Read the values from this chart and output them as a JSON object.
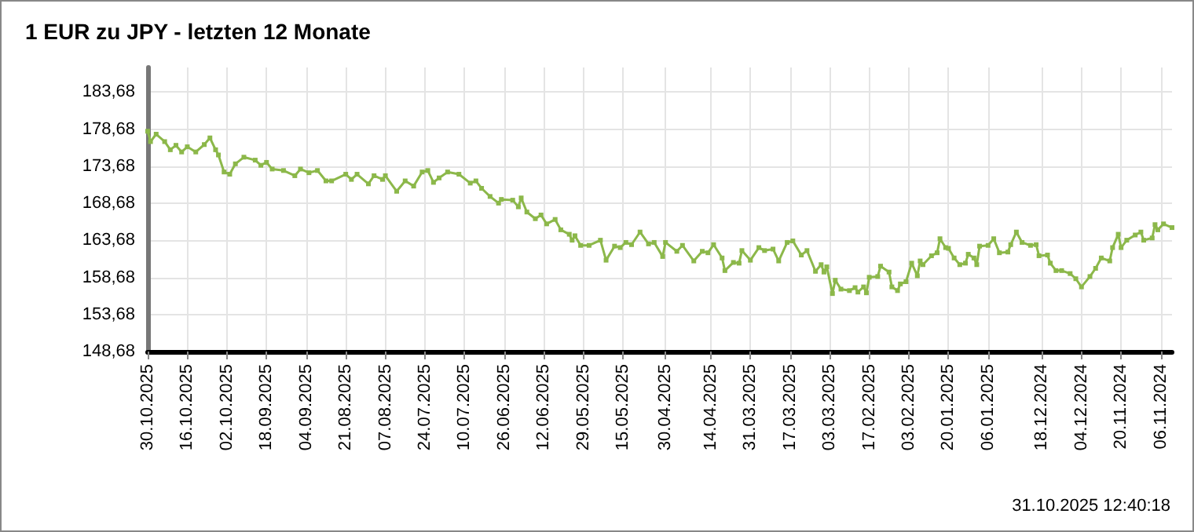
{
  "chart_data": {
    "type": "line",
    "title": "1 EUR zu JPY - letzten 12 Monate",
    "annotations": [
      "31.10.2025 12:40:18"
    ],
    "x": [
      "2025-10-30",
      "2025-10-29",
      "2025-10-27",
      "2025-10-24",
      "2025-10-22",
      "2025-10-20",
      "2025-10-18",
      "2025-10-16",
      "2025-10-13",
      "2025-10-10",
      "2025-10-08",
      "2025-10-06",
      "2025-10-05",
      "2025-10-03",
      "2025-10-01",
      "2025-09-29",
      "2025-09-26",
      "2025-09-22",
      "2025-09-20",
      "2025-09-18",
      "2025-09-16",
      "2025-09-12",
      "2025-09-08",
      "2025-09-06",
      "2025-09-03",
      "2025-08-31",
      "2025-08-28",
      "2025-08-26",
      "2025-08-21",
      "2025-08-19",
      "2025-08-17",
      "2025-08-13",
      "2025-08-11",
      "2025-08-08",
      "2025-08-07",
      "2025-08-03",
      "2025-07-31",
      "2025-07-28",
      "2025-07-25",
      "2025-07-23",
      "2025-07-21",
      "2025-07-19",
      "2025-07-16",
      "2025-07-12",
      "2025-07-08",
      "2025-07-06",
      "2025-07-04",
      "2025-07-01",
      "2025-06-28",
      "2025-06-27",
      "2025-06-23",
      "2025-06-21",
      "2025-06-20",
      "2025-06-18",
      "2025-06-15",
      "2025-06-13",
      "2025-06-11",
      "2025-06-08",
      "2025-06-06",
      "2025-06-03",
      "2025-06-02",
      "2025-06-01",
      "2025-05-30",
      "2025-05-27",
      "2025-05-23",
      "2025-05-21",
      "2025-05-18",
      "2025-05-16",
      "2025-05-14",
      "2025-05-12",
      "2025-05-09",
      "2025-05-06",
      "2025-05-04",
      "2025-05-01",
      "2025-04-30",
      "2025-04-26",
      "2025-04-24",
      "2025-04-20",
      "2025-04-17",
      "2025-04-15",
      "2025-04-13",
      "2025-04-10",
      "2025-04-09",
      "2025-04-06",
      "2025-04-04",
      "2025-04-03",
      "2025-03-31",
      "2025-03-28",
      "2025-03-26",
      "2025-03-23",
      "2025-03-21",
      "2025-03-18",
      "2025-03-16",
      "2025-03-13",
      "2025-03-11",
      "2025-03-08",
      "2025-03-06",
      "2025-03-05",
      "2025-03-04",
      "2025-03-02",
      "2025-03-01",
      "2025-02-27",
      "2025-02-24",
      "2025-02-22",
      "2025-02-21",
      "2025-02-19",
      "2025-02-18",
      "2025-02-17",
      "2025-02-14",
      "2025-02-13",
      "2025-02-10",
      "2025-02-09",
      "2025-02-07",
      "2025-02-06",
      "2025-02-04",
      "2025-02-02",
      "2025-01-31",
      "2025-01-30",
      "2025-01-29",
      "2025-01-26",
      "2025-01-24",
      "2025-01-23",
      "2025-01-21",
      "2025-01-20",
      "2025-01-18",
      "2025-01-16",
      "2025-01-14",
      "2025-01-13",
      "2025-01-11",
      "2025-01-10",
      "2025-01-09",
      "2025-01-06",
      "2025-01-04",
      "2025-01-02",
      "2024-12-30",
      "2024-12-29",
      "2024-12-27",
      "2024-12-25",
      "2024-12-22",
      "2024-12-20",
      "2024-12-19",
      "2024-12-16",
      "2024-12-15",
      "2024-12-13",
      "2024-12-11",
      "2024-12-08",
      "2024-12-06",
      "2024-12-04",
      "2024-12-01",
      "2024-11-29",
      "2024-11-27",
      "2024-11-24",
      "2024-11-23",
      "2024-11-21",
      "2024-11-20",
      "2024-11-18",
      "2024-11-15",
      "2024-11-13",
      "2024-11-12",
      "2024-11-09",
      "2024-11-08",
      "2024-11-07",
      "2024-11-05",
      "2024-11-02"
    ],
    "series": [
      {
        "color": "#8cb84a",
        "values": [
          178.4,
          177.0,
          178.0,
          177.0,
          175.9,
          176.5,
          175.6,
          176.3,
          175.6,
          176.6,
          177.5,
          175.9,
          175.2,
          172.9,
          172.6,
          174.0,
          174.9,
          174.5,
          173.8,
          174.2,
          173.3,
          173.1,
          172.4,
          173.3,
          172.8,
          173.1,
          171.7,
          171.7,
          172.6,
          171.9,
          172.6,
          171.3,
          172.4,
          171.9,
          172.4,
          170.3,
          171.7,
          171.0,
          172.9,
          173.1,
          171.5,
          172.1,
          172.9,
          172.6,
          171.4,
          171.7,
          170.7,
          169.6,
          168.7,
          169.2,
          169.1,
          168.2,
          169.4,
          167.5,
          166.6,
          167.1,
          165.9,
          166.5,
          165.1,
          164.5,
          163.7,
          164.3,
          163.0,
          163.0,
          163.7,
          161.0,
          162.9,
          162.7,
          163.4,
          163.1,
          164.8,
          163.2,
          163.4,
          161.5,
          163.4,
          162.2,
          163.0,
          160.9,
          162.2,
          162.0,
          163.1,
          161.3,
          159.6,
          160.7,
          160.6,
          162.3,
          161.0,
          162.7,
          162.3,
          162.5,
          160.9,
          163.4,
          163.6,
          161.7,
          162.3,
          159.5,
          160.4,
          159.4,
          160.1,
          156.5,
          158.3,
          157.1,
          156.9,
          157.3,
          156.7,
          157.4,
          156.6,
          158.7,
          158.8,
          160.2,
          159.4,
          157.4,
          156.9,
          157.8,
          158.1,
          160.6,
          158.9,
          160.9,
          160.4,
          161.6,
          162.0,
          163.9,
          162.7,
          162.6,
          161.3,
          160.4,
          160.6,
          161.8,
          161.3,
          160.4,
          162.9,
          163.0,
          163.9,
          162.0,
          162.1,
          163.1,
          164.8,
          163.4,
          163.0,
          163.1,
          161.6,
          161.7,
          160.6,
          159.6,
          159.6,
          159.2,
          158.5,
          157.4,
          158.8,
          159.9,
          161.3,
          160.9,
          162.7,
          164.5,
          162.7,
          163.7,
          164.4,
          164.8,
          163.7,
          164.0,
          165.8,
          165.1,
          165.9,
          165.4
        ]
      }
    ],
    "xlim": [
      "2025-10-30",
      "2024-11-02"
    ],
    "xticks": [
      {
        "value": "2025-10-30",
        "label": "30.10.2025"
      },
      {
        "value": "2025-10-16",
        "label": "16.10.2025"
      },
      {
        "value": "2025-10-02",
        "label": "02.10.2025"
      },
      {
        "value": "2025-09-18",
        "label": "18.09.2025"
      },
      {
        "value": "2025-09-04",
        "label": "04.09.2025"
      },
      {
        "value": "2025-08-21",
        "label": "21.08.2025"
      },
      {
        "value": "2025-08-07",
        "label": "07.08.2025"
      },
      {
        "value": "2025-07-24",
        "label": "24.07.2025"
      },
      {
        "value": "2025-07-10",
        "label": "10.07.2025"
      },
      {
        "value": "2025-06-26",
        "label": "26.06.2025"
      },
      {
        "value": "2025-06-12",
        "label": "12.06.2025"
      },
      {
        "value": "2025-05-29",
        "label": "29.05.2025"
      },
      {
        "value": "2025-05-15",
        "label": "15.05.2025"
      },
      {
        "value": "2025-04-30",
        "label": "30.04.2025"
      },
      {
        "value": "2025-04-14",
        "label": "14.04.2025"
      },
      {
        "value": "2025-03-31",
        "label": "31.03.2025"
      },
      {
        "value": "2025-03-17",
        "label": "17.03.2025"
      },
      {
        "value": "2025-03-03",
        "label": "03.03.2025"
      },
      {
        "value": "2025-02-17",
        "label": "17.02.2025"
      },
      {
        "value": "2025-02-03",
        "label": "03.02.2025"
      },
      {
        "value": "2025-01-20",
        "label": "20.01.2025"
      },
      {
        "value": "2025-01-06",
        "label": "06.01.2025"
      },
      {
        "value": "2024-12-18",
        "label": "18.12.2024"
      },
      {
        "value": "2024-12-04",
        "label": "04.12.2024"
      },
      {
        "value": "2024-11-20",
        "label": "20.11.2024"
      },
      {
        "value": "2024-11-06",
        "label": "06.11.2024"
      }
    ],
    "ylim": [
      148.68,
      187
    ],
    "yticks": [
      {
        "value": 148.68,
        "label": "148,68"
      },
      {
        "value": 153.68,
        "label": "153,68"
      },
      {
        "value": 158.68,
        "label": "158,68"
      },
      {
        "value": 163.68,
        "label": "163,68"
      },
      {
        "value": 168.68,
        "label": "168,68"
      },
      {
        "value": 173.68,
        "label": "173,68"
      },
      {
        "value": 178.68,
        "label": "178,68"
      },
      {
        "value": 183.68,
        "label": "183,68"
      }
    ],
    "grid": true,
    "marker": "square",
    "line_style": "solid"
  }
}
